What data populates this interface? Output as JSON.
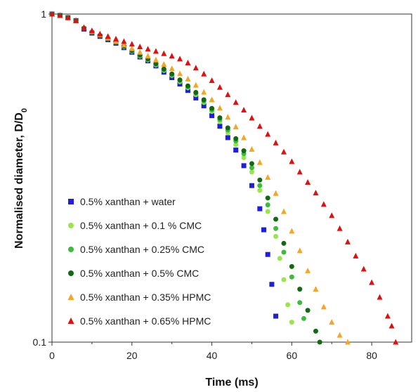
{
  "chart_data": {
    "type": "scatter",
    "xlabel": "Time (ms)",
    "ylabel": "Normalised diameter, D/D",
    "ylabel_sub": "0",
    "xlim": [
      0,
      90
    ],
    "ylim": [
      0.1,
      1
    ],
    "y_scale": "log",
    "x_ticks": [
      "0",
      "20",
      "40",
      "60",
      "80"
    ],
    "y_ticks": [
      "0.1",
      "1"
    ],
    "grid": false,
    "legend_position": "bottom-left",
    "series": [
      {
        "name": "0.5% xanthan + water",
        "marker": "square",
        "color": "#1f1fd8",
        "points": [
          [
            0,
            1
          ],
          [
            2,
            0.99
          ],
          [
            4,
            0.975
          ],
          [
            6,
            0.955
          ],
          [
            8,
            0.9
          ],
          [
            10,
            0.875
          ],
          [
            12,
            0.855
          ],
          [
            14,
            0.835
          ],
          [
            16,
            0.815
          ],
          [
            18,
            0.79
          ],
          [
            20,
            0.765
          ],
          [
            22,
            0.74
          ],
          [
            24,
            0.72
          ],
          [
            26,
            0.695
          ],
          [
            28,
            0.665
          ],
          [
            30,
            0.64
          ],
          [
            32,
            0.612
          ],
          [
            34,
            0.585
          ],
          [
            36,
            0.555
          ],
          [
            38,
            0.525
          ],
          [
            40,
            0.49
          ],
          [
            42,
            0.455
          ],
          [
            44,
            0.42
          ],
          [
            46,
            0.385
          ],
          [
            48,
            0.345
          ],
          [
            50,
            0.3
          ],
          [
            52,
            0.255
          ],
          [
            53,
            0.22
          ],
          [
            54,
            0.185
          ],
          [
            55,
            0.15
          ],
          [
            56,
            0.12
          ]
        ]
      },
      {
        "name": "0.5% xanthan + 0.1 % CMC",
        "marker": "circle",
        "color": "#99e64a",
        "points": [
          [
            0,
            1
          ],
          [
            2,
            0.99
          ],
          [
            4,
            0.975
          ],
          [
            6,
            0.955
          ],
          [
            8,
            0.905
          ],
          [
            10,
            0.88
          ],
          [
            12,
            0.86
          ],
          [
            14,
            0.84
          ],
          [
            16,
            0.82
          ],
          [
            18,
            0.795
          ],
          [
            20,
            0.77
          ],
          [
            22,
            0.745
          ],
          [
            24,
            0.725
          ],
          [
            26,
            0.7
          ],
          [
            28,
            0.673
          ],
          [
            30,
            0.65
          ],
          [
            32,
            0.622
          ],
          [
            34,
            0.596
          ],
          [
            36,
            0.568
          ],
          [
            38,
            0.538
          ],
          [
            40,
            0.505
          ],
          [
            42,
            0.47
          ],
          [
            44,
            0.435
          ],
          [
            46,
            0.4
          ],
          [
            48,
            0.365
          ],
          [
            50,
            0.33
          ],
          [
            52,
            0.29
          ],
          [
            54,
            0.25
          ],
          [
            56,
            0.21
          ],
          [
            57,
            0.18
          ],
          [
            58,
            0.155
          ],
          [
            59,
            0.13
          ],
          [
            60,
            0.115
          ]
        ]
      },
      {
        "name": "0.5% xanthan + 0.25% CMC",
        "marker": "circle",
        "color": "#3dbb3d",
        "points": [
          [
            0,
            1
          ],
          [
            2,
            0.99
          ],
          [
            4,
            0.975
          ],
          [
            6,
            0.955
          ],
          [
            8,
            0.905
          ],
          [
            10,
            0.88
          ],
          [
            12,
            0.86
          ],
          [
            14,
            0.84
          ],
          [
            16,
            0.82
          ],
          [
            18,
            0.797
          ],
          [
            20,
            0.772
          ],
          [
            22,
            0.748
          ],
          [
            24,
            0.727
          ],
          [
            26,
            0.703
          ],
          [
            28,
            0.676
          ],
          [
            30,
            0.653
          ],
          [
            32,
            0.626
          ],
          [
            34,
            0.6
          ],
          [
            36,
            0.573
          ],
          [
            38,
            0.543
          ],
          [
            40,
            0.51
          ],
          [
            42,
            0.477
          ],
          [
            44,
            0.443
          ],
          [
            46,
            0.41
          ],
          [
            48,
            0.375
          ],
          [
            50,
            0.34
          ],
          [
            52,
            0.3
          ],
          [
            54,
            0.262
          ],
          [
            56,
            0.222
          ],
          [
            58,
            0.188
          ],
          [
            60,
            0.158
          ],
          [
            62,
            0.132
          ],
          [
            63,
            0.118
          ]
        ]
      },
      {
        "name": "0.5% xanthan + 0.5% CMC",
        "marker": "circle",
        "color": "#116a11",
        "points": [
          [
            0,
            1
          ],
          [
            2,
            0.99
          ],
          [
            4,
            0.975
          ],
          [
            6,
            0.955
          ],
          [
            8,
            0.905
          ],
          [
            10,
            0.88
          ],
          [
            12,
            0.86
          ],
          [
            14,
            0.84
          ],
          [
            16,
            0.82
          ],
          [
            18,
            0.798
          ],
          [
            20,
            0.774
          ],
          [
            22,
            0.75
          ],
          [
            24,
            0.73
          ],
          [
            26,
            0.706
          ],
          [
            28,
            0.68
          ],
          [
            30,
            0.657
          ],
          [
            32,
            0.63
          ],
          [
            34,
            0.604
          ],
          [
            36,
            0.577
          ],
          [
            38,
            0.548
          ],
          [
            40,
            0.516
          ],
          [
            42,
            0.483
          ],
          [
            44,
            0.45
          ],
          [
            46,
            0.417
          ],
          [
            48,
            0.383
          ],
          [
            50,
            0.35
          ],
          [
            52,
            0.312
          ],
          [
            54,
            0.275
          ],
          [
            56,
            0.237
          ],
          [
            58,
            0.2
          ],
          [
            60,
            0.17
          ],
          [
            62,
            0.145
          ],
          [
            64,
            0.125
          ],
          [
            66,
            0.108
          ],
          [
            67,
            0.1
          ]
        ]
      },
      {
        "name": "0.5% xanthan + 0.35% HPMC",
        "marker": "triangle",
        "color": "#f5a623",
        "points": [
          [
            0,
            1
          ],
          [
            2,
            0.99
          ],
          [
            4,
            0.975
          ],
          [
            6,
            0.955
          ],
          [
            8,
            0.91
          ],
          [
            10,
            0.885
          ],
          [
            12,
            0.865
          ],
          [
            14,
            0.845
          ],
          [
            16,
            0.825
          ],
          [
            18,
            0.805
          ],
          [
            20,
            0.785
          ],
          [
            22,
            0.765
          ],
          [
            24,
            0.745
          ],
          [
            26,
            0.725
          ],
          [
            28,
            0.703
          ],
          [
            30,
            0.682
          ],
          [
            32,
            0.658
          ],
          [
            34,
            0.634
          ],
          [
            36,
            0.607
          ],
          [
            38,
            0.578
          ],
          [
            40,
            0.548
          ],
          [
            42,
            0.517
          ],
          [
            44,
            0.485
          ],
          [
            46,
            0.453
          ],
          [
            48,
            0.42
          ],
          [
            50,
            0.387
          ],
          [
            52,
            0.353
          ],
          [
            54,
            0.318
          ],
          [
            56,
            0.284
          ],
          [
            58,
            0.25
          ],
          [
            60,
            0.218
          ],
          [
            62,
            0.19
          ],
          [
            64,
            0.165
          ],
          [
            66,
            0.145
          ],
          [
            68,
            0.128
          ],
          [
            70,
            0.115
          ],
          [
            72,
            0.105
          ],
          [
            74,
            0.1
          ]
        ]
      },
      {
        "name": "0.5% xanthan + 0.65% HPMC",
        "marker": "triangle",
        "color": "#e01010",
        "points": [
          [
            0,
            1
          ],
          [
            2,
            0.99
          ],
          [
            4,
            0.975
          ],
          [
            6,
            0.955
          ],
          [
            8,
            0.91
          ],
          [
            10,
            0.89
          ],
          [
            12,
            0.87
          ],
          [
            14,
            0.855
          ],
          [
            16,
            0.84
          ],
          [
            18,
            0.825
          ],
          [
            20,
            0.81
          ],
          [
            22,
            0.795
          ],
          [
            24,
            0.782
          ],
          [
            26,
            0.77
          ],
          [
            28,
            0.758
          ],
          [
            30,
            0.745
          ],
          [
            32,
            0.73
          ],
          [
            34,
            0.71
          ],
          [
            36,
            0.685
          ],
          [
            38,
            0.657
          ],
          [
            40,
            0.627
          ],
          [
            42,
            0.598
          ],
          [
            44,
            0.568
          ],
          [
            46,
            0.538
          ],
          [
            48,
            0.51
          ],
          [
            50,
            0.482
          ],
          [
            52,
            0.455
          ],
          [
            54,
            0.43
          ],
          [
            56,
            0.405
          ],
          [
            58,
            0.38
          ],
          [
            60,
            0.355
          ],
          [
            62,
            0.33
          ],
          [
            64,
            0.307
          ],
          [
            66,
            0.285
          ],
          [
            68,
            0.263
          ],
          [
            70,
            0.243
          ],
          [
            72,
            0.222
          ],
          [
            74,
            0.202
          ],
          [
            76,
            0.183
          ],
          [
            78,
            0.167
          ],
          [
            80,
            0.152
          ],
          [
            82,
            0.137
          ],
          [
            84,
            0.12
          ],
          [
            85,
            0.112
          ],
          [
            86,
            0.1
          ]
        ]
      }
    ]
  }
}
